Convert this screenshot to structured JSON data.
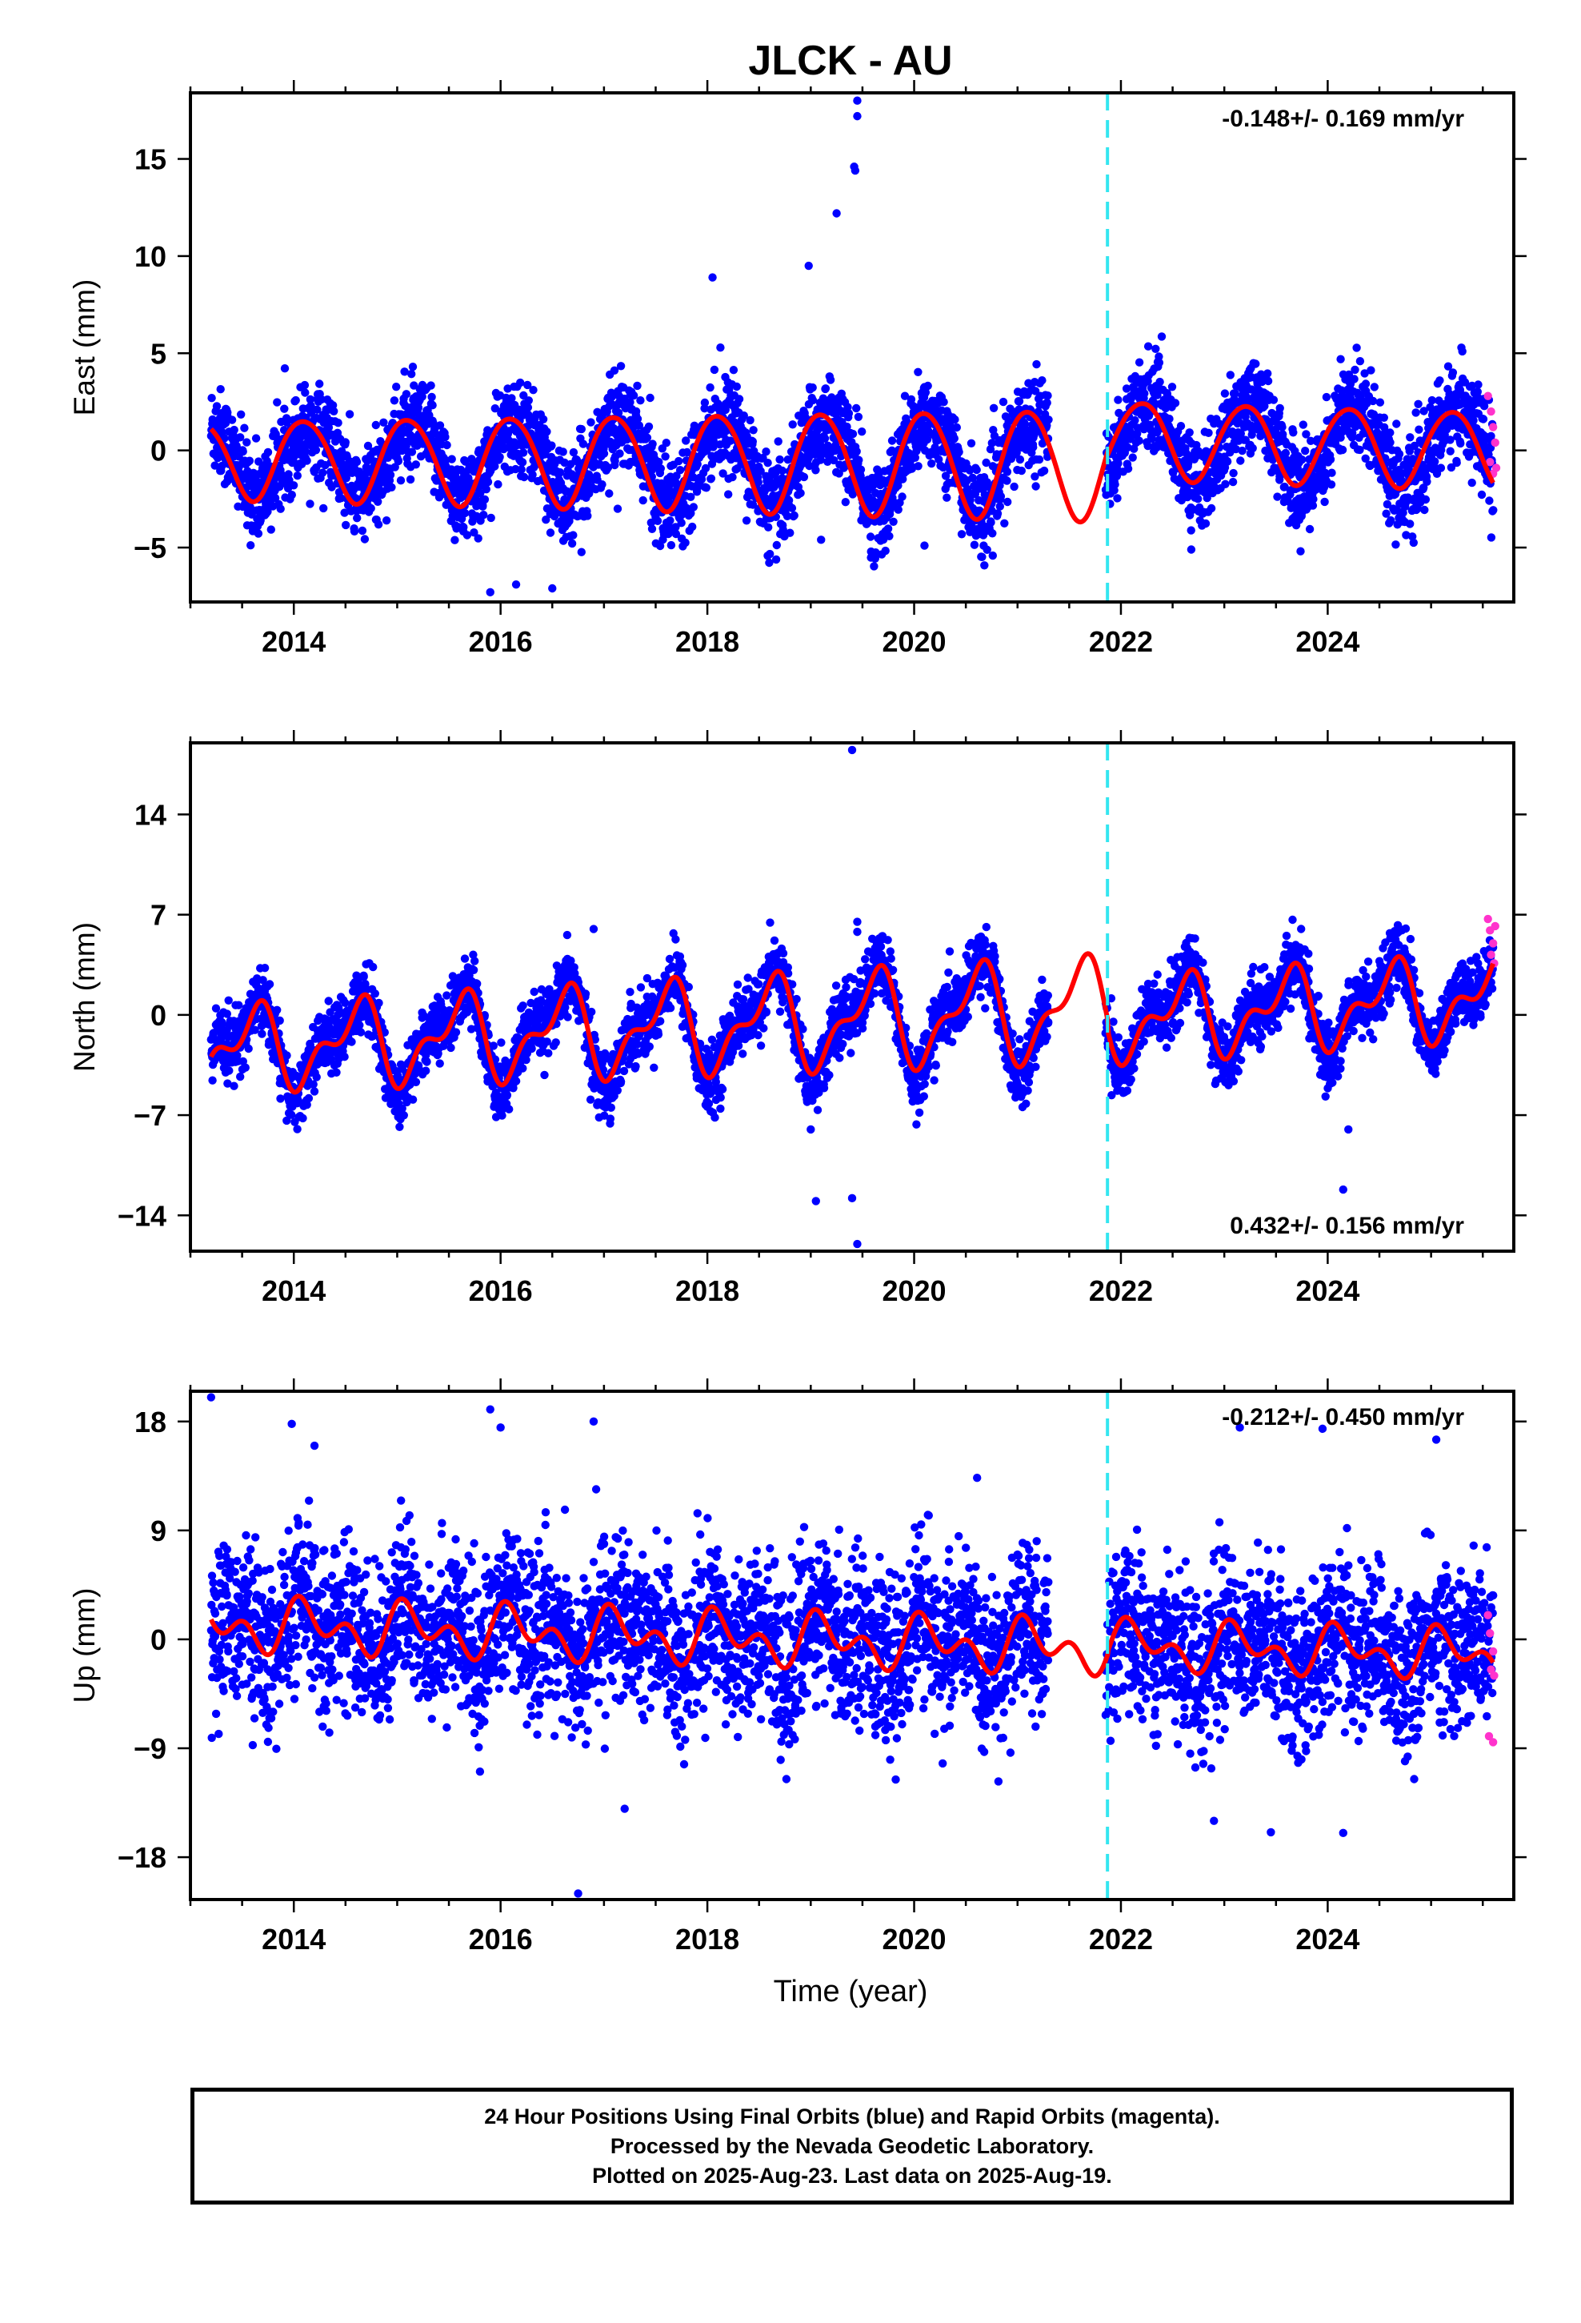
{
  "title": "JLCK - AU",
  "xlabel": "Time (year)",
  "x_tick_labels": [
    "2014",
    "2016",
    "2018",
    "2020",
    "2022",
    "2024"
  ],
  "caption": [
    "24 Hour Positions Using Final Orbits (blue) and Rapid Orbits (magenta).",
    "Processed by the Nevada Geodetic Laboratory.",
    "Plotted on 2025-Aug-23. Last data on 2025-Aug-19."
  ],
  "colors": {
    "final_orbits": "#0000ff",
    "rapid_orbits": "#ff33cc",
    "model_fit": "#ff0000",
    "equipment_change": "#33e6f0"
  },
  "chart_data": [
    {
      "type": "scatter",
      "name": "east",
      "ylabel": "East (mm)",
      "rate_label": "-0.148+/- 0.169 mm/yr",
      "xlim": [
        2013.0,
        2025.8
      ],
      "ylim": [
        -7.8,
        18.4
      ],
      "yticks": [
        -5,
        0,
        5,
        10,
        15
      ],
      "ytick_labels": [
        "−5",
        "0",
        "5",
        "10",
        "15"
      ],
      "equipment_change_year": 2021.87,
      "data_span": [
        2013.2,
        2025.6
      ],
      "gap": [
        2021.3,
        2021.85
      ],
      "model": {
        "segments": [
          {
            "x0": 2013.0,
            "x1": 2021.87,
            "offset": -0.4,
            "trend": -0.03,
            "ref": 2013.2,
            "annual_amp": 2.0,
            "annual_phase": 0.85,
            "semi_amp": 0.2,
            "semi_phase": 0.25,
            "amp_growth": 0.05
          },
          {
            "x0": 2021.87,
            "x1": 2025.8,
            "offset": 0.6,
            "trend": -0.15,
            "ref": 2021.87,
            "annual_amp": 2.0,
            "annual_phase": 0.95,
            "semi_amp": 0.15,
            "semi_phase": 0.3,
            "amp_growth": 0.0
          }
        ]
      },
      "scatter": {
        "noise_sd": 1.15,
        "seasonal_extra": 1.5
      },
      "outliers": [
        [
          2019.45,
          18.0
        ],
        [
          2019.45,
          17.2
        ],
        [
          2019.42,
          14.6
        ],
        [
          2019.43,
          14.4
        ],
        [
          2019.25,
          12.2
        ],
        [
          2018.98,
          9.5
        ],
        [
          2018.05,
          8.9
        ],
        [
          2019.1,
          -4.6
        ],
        [
          2020.1,
          -4.9
        ],
        [
          2015.9,
          -7.3
        ],
        [
          2016.5,
          -7.1
        ],
        [
          2016.15,
          -6.9
        ]
      ],
      "rapid_points": [
        [
          2025.55,
          2.8
        ],
        [
          2025.58,
          2.0
        ],
        [
          2025.6,
          1.2
        ],
        [
          2025.57,
          -0.6
        ],
        [
          2025.6,
          -1.2
        ],
        [
          2025.62,
          0.4
        ],
        [
          2025.63,
          -0.9
        ]
      ]
    },
    {
      "type": "scatter",
      "name": "north",
      "ylabel": "North (mm)",
      "rate_label": "0.432+/- 0.156 mm/yr",
      "xlim": [
        2013.0,
        2025.8
      ],
      "ylim": [
        -16.5,
        19.0
      ],
      "yticks": [
        -14,
        -7,
        0,
        7,
        14
      ],
      "ytick_labels": [
        "−14",
        "−7",
        "0",
        "7",
        "14"
      ],
      "equipment_change_year": 2021.87,
      "data_span": [
        2013.2,
        2025.6
      ],
      "gap": [
        2021.3,
        2021.85
      ],
      "model": {
        "segments": [
          {
            "x0": 2013.0,
            "x1": 2021.87,
            "offset": -2.4,
            "trend": 0.33,
            "ref": 2013.2,
            "annual_amp": 2.3,
            "annual_phase": 0.35,
            "semi_amp": 1.4,
            "semi_phase": 0.1,
            "amp_growth": 0.04
          },
          {
            "x0": 2021.87,
            "x1": 2025.8,
            "offset": -0.4,
            "trend": 0.45,
            "ref": 2021.87,
            "annual_amp": 2.3,
            "annual_phase": 0.35,
            "semi_amp": 1.4,
            "semi_phase": 0.1,
            "amp_growth": 0.0
          }
        ]
      },
      "scatter": {
        "noise_sd": 1.1,
        "seasonal_extra": 0.8
      },
      "outliers": [
        [
          2019.4,
          18.5
        ],
        [
          2019.45,
          6.5
        ],
        [
          2019.45,
          5.8
        ],
        [
          2019.0,
          -8.0
        ],
        [
          2019.05,
          -13.0
        ],
        [
          2019.4,
          -12.8
        ],
        [
          2019.45,
          -16.0
        ],
        [
          2024.2,
          -8.0
        ],
        [
          2024.15,
          -12.2
        ],
        [
          2016.9,
          6.0
        ]
      ],
      "rapid_points": [
        [
          2025.55,
          6.7
        ],
        [
          2025.57,
          5.9
        ],
        [
          2025.6,
          5.0
        ],
        [
          2025.58,
          4.2
        ],
        [
          2025.61,
          3.6
        ],
        [
          2025.62,
          6.2
        ]
      ]
    },
    {
      "type": "scatter",
      "name": "up",
      "ylabel": "Up (mm)",
      "rate_label": "-0.212+/- 0.450 mm/yr",
      "xlim": [
        2013.0,
        2025.8
      ],
      "ylim": [
        -21.5,
        20.5
      ],
      "yticks": [
        -18,
        -9,
        0,
        9,
        18
      ],
      "ytick_labels": [
        "−18",
        "−9",
        "0",
        "9",
        "18"
      ],
      "equipment_change_year": 2021.87,
      "data_span": [
        2013.2,
        2025.6
      ],
      "gap": [
        2021.3,
        2021.85
      ],
      "model": {
        "segments": [
          {
            "x0": 2013.0,
            "x1": 2021.87,
            "offset": 1.2,
            "trend": -0.22,
            "ref": 2013.2,
            "annual_amp": 1.4,
            "annual_phase": 0.88,
            "semi_amp": 1.4,
            "semi_phase": 0.4,
            "amp_growth": 0.0
          },
          {
            "x0": 2021.87,
            "x1": 2025.8,
            "offset": -0.5,
            "trend": -0.2,
            "ref": 2021.87,
            "annual_amp": 1.4,
            "annual_phase": 0.88,
            "semi_amp": 1.2,
            "semi_phase": 0.4,
            "amp_growth": 0.0
          }
        ]
      },
      "scatter": {
        "noise_sd": 3.3,
        "seasonal_extra": 1.2
      },
      "outliers": [
        [
          2013.2,
          20.0
        ],
        [
          2015.9,
          19.0
        ],
        [
          2016.0,
          17.5
        ],
        [
          2016.9,
          18.0
        ],
        [
          2013.98,
          17.8
        ],
        [
          2023.15,
          17.5
        ],
        [
          2023.95,
          17.4
        ],
        [
          2025.05,
          16.5
        ],
        [
          2014.2,
          16.0
        ],
        [
          2016.75,
          -21.0
        ],
        [
          2017.2,
          -14.0
        ],
        [
          2024.15,
          -16.0
        ],
        [
          2022.9,
          -15.0
        ]
      ],
      "rapid_points": [
        [
          2025.55,
          2.0
        ],
        [
          2025.57,
          0.5
        ],
        [
          2025.6,
          -1.0
        ],
        [
          2025.58,
          -2.5
        ],
        [
          2025.61,
          -3.0
        ],
        [
          2025.56,
          -8.0
        ],
        [
          2025.6,
          -8.5
        ]
      ]
    }
  ]
}
